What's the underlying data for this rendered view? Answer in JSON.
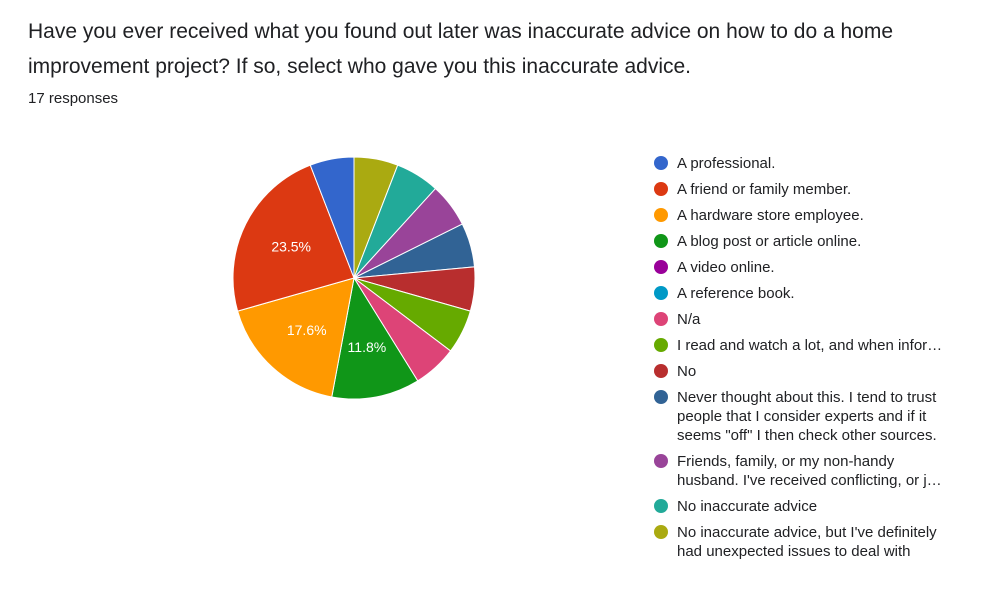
{
  "question": "Have you ever received what you found out later was inaccurate advice on how to do a home improvement project? If so, select who gave you this inaccurate advice.",
  "responses_label": "17 responses",
  "chart_data": {
    "type": "pie",
    "total_responses": 17,
    "categories": [
      "A professional.",
      "A friend or family member.",
      "A hardware store employee.",
      "A blog post or article online.",
      "A video online.",
      "A reference book.",
      "N/a",
      "I read and watch a lot, and when infor…",
      "No",
      "Never thought about this. I tend to trust\npeople that I consider experts and if it\nseems \"off\" I then check other sources.",
      "Friends, family, or my non-handy\nhusband. I've received conflicting, or j…",
      "No inaccurate advice",
      "No inaccurate advice, but I've definitely\nhad unexpected issues to deal with"
    ],
    "values": [
      1,
      4,
      3,
      2,
      0,
      0,
      1,
      1,
      1,
      1,
      1,
      1,
      1
    ],
    "percent_labels": [
      "",
      "23.5%",
      "17.6%",
      "11.8%",
      "",
      "",
      "",
      "",
      "",
      "",
      "",
      "",
      ""
    ],
    "colors": [
      "#3366cc",
      "#dc3912",
      "#ff9900",
      "#109618",
      "#990099",
      "#0099c6",
      "#dd4477",
      "#66aa00",
      "#b82e2e",
      "#316395",
      "#994499",
      "#22aa99",
      "#aaaa11"
    ],
    "legend_position": "right"
  }
}
